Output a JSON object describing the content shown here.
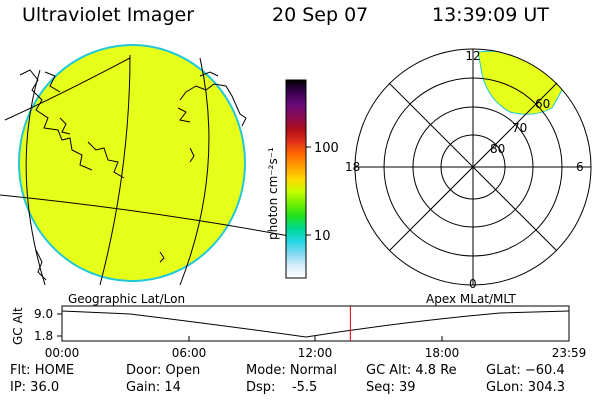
{
  "header": {
    "title": "Ultraviolet Imager",
    "date": "20 Sep 07",
    "time": "13:39:09 UT"
  },
  "colorbar": {
    "unit_label": "photon cm⁻²s⁻¹",
    "ticks": [
      "100",
      "10"
    ],
    "stops": [
      "#000000",
      "#3a0050",
      "#6a0a78",
      "#8a0a50",
      "#b0101a",
      "#e0301a",
      "#ff6a00",
      "#ffa000",
      "#ffd800",
      "#c8ff00",
      "#70f000",
      "#20e020",
      "#00d890",
      "#20d8e0",
      "#80d8f0",
      "#d8eef8",
      "#ffffff"
    ]
  },
  "geo_panel": {
    "label": "Geographic Lat/Lon",
    "disk_color": "#e6ff1a",
    "disk_edge": "#22c8d8"
  },
  "polar_panel": {
    "label": "Apex MLat/MLT",
    "mlt_labels": {
      "top": "12",
      "left": "18",
      "right": "6",
      "bottom": "0"
    },
    "lat_labels": [
      "80",
      "70",
      "60"
    ],
    "aurora_color": "#e6ff1a"
  },
  "timeline": {
    "axis_title": "GC Alt",
    "y_ticks": [
      "9.0",
      "1.8"
    ],
    "x_ticks": [
      "00:00",
      "06:00",
      "12:00",
      "18:00",
      "23:59"
    ],
    "cursor_color": "#e00000",
    "cursor_hours": 13.65
  },
  "info": {
    "flt": "Flt: HOME",
    "ip": "IP: 36.0",
    "door": "Door: Open",
    "gain": "Gain: 14",
    "mode": "Mode: Normal",
    "dsp": "Dsp:    -5.5",
    "gc_alt": "GC Alt: 4.8 Re",
    "seq": "Seq: 39",
    "glat": "GLat: −60.4",
    "glon": "GLon: 304.3"
  }
}
